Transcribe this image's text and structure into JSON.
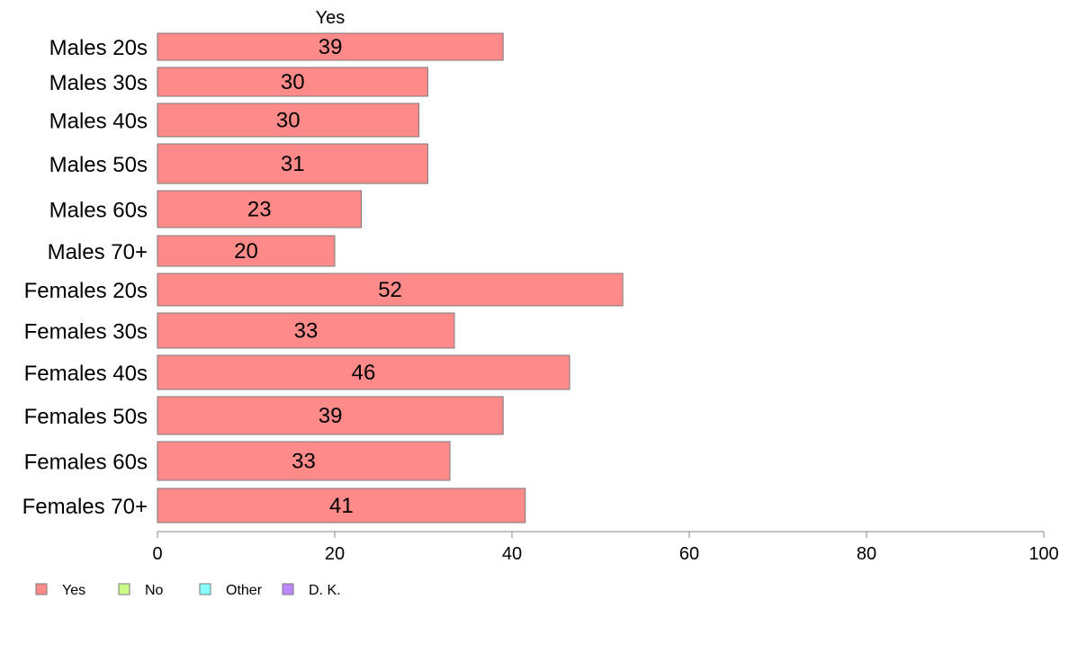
{
  "chart_data": {
    "type": "bar",
    "orientation": "horizontal",
    "stacked": true,
    "series_title": "Yes",
    "categories": [
      "Males 20s",
      "Males 30s",
      "Males 40s",
      "Males 50s",
      "Males 60s",
      "Males 70+",
      "Females 20s",
      "Females 30s",
      "Females 40s",
      "Females 50s",
      "Females 60s",
      "Females 70+"
    ],
    "series": [
      {
        "name": "Yes",
        "color": "#ff8a8a",
        "values": [
          39,
          30.5,
          29.5,
          30.5,
          23,
          20,
          52.5,
          33.5,
          46.5,
          39,
          33,
          41.5
        ],
        "labels": [
          "39",
          "30",
          "30",
          "31",
          "23",
          "20",
          "52",
          "33",
          "46",
          "39",
          "33",
          "41"
        ]
      }
    ],
    "xlim": [
      0,
      100
    ],
    "xticks": [
      "0",
      "20",
      "40",
      "60",
      "80",
      "100"
    ],
    "grid": false,
    "legend": {
      "position": "bottom-left",
      "items": [
        {
          "label": "Yes",
          "color": "#ff8a8a"
        },
        {
          "label": "No",
          "color": "#ccff88"
        },
        {
          "label": "Other",
          "color": "#88ffff"
        },
        {
          "label": "D. K.",
          "color": "#bb88ff"
        }
      ]
    }
  }
}
